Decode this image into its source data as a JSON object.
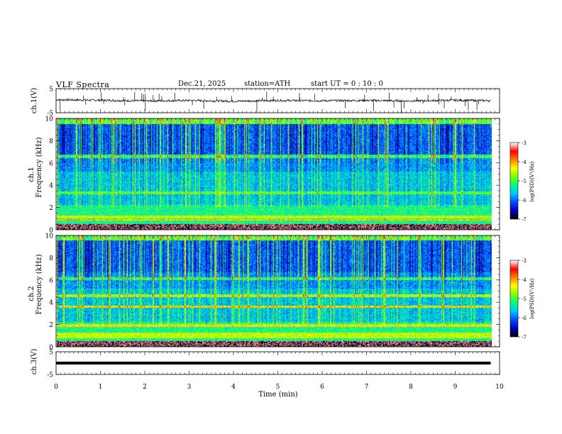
{
  "header": {
    "title": "VLF  Spectra",
    "date": "Dec.21, 2025",
    "station": "station=ATH",
    "start_ut": "start  UT  =   0 : 10 : 0"
  },
  "chart_data": [
    {
      "type": "line",
      "panel": "ch1-waveform",
      "ylabel": "ch.1(V)",
      "ylim": [
        -5,
        5
      ],
      "yticks": [
        "5",
        "-5"
      ],
      "x": [
        0,
        1,
        2,
        3,
        4,
        5,
        6,
        7,
        8,
        9,
        9.8
      ],
      "values": [
        0.4,
        0.2,
        -0.1,
        0.1,
        -0.2,
        0.1,
        0.0,
        0.1,
        -0.1,
        0.2,
        0.0
      ],
      "xlim": [
        0,
        10
      ]
    },
    {
      "type": "heatmap",
      "panel": "ch1-spectrogram",
      "ylabel": "ch.1\nFrequency (kHz)",
      "ylim": [
        0,
        10
      ],
      "yticks": [
        "0",
        "2",
        "4",
        "6",
        "8",
        "10"
      ],
      "xlim": [
        0,
        10
      ],
      "colorbar": {
        "label": "log(PSD)(V²/Hz)",
        "min": -7,
        "max": -3,
        "ticks": [
          "-3",
          "-4",
          "-5",
          "-6",
          "-7"
        ]
      }
    },
    {
      "type": "heatmap",
      "panel": "ch2-spectrogram",
      "ylabel": "ch.2\nFrequency (kHz)",
      "ylim": [
        0,
        10
      ],
      "yticks": [
        "0",
        "2",
        "4",
        "6",
        "8",
        "10"
      ],
      "xlim": [
        0,
        10
      ],
      "colorbar": {
        "label": "log(PSD)(V²/Hz)",
        "min": -7,
        "max": -3,
        "ticks": [
          "-3",
          "-4",
          "-5",
          "-6",
          "-7"
        ]
      }
    },
    {
      "type": "line",
      "panel": "ch3-waveform",
      "ylabel": "ch.3(V)",
      "ylim": [
        -5,
        5
      ],
      "yticks": [
        "5",
        "-5"
      ],
      "x": [
        0,
        9.8
      ],
      "values": [
        0,
        0
      ],
      "xlim": [
        0,
        10
      ],
      "xlabel": "Time  (min)",
      "xticks": [
        "0",
        "1",
        "2",
        "3",
        "4",
        "5",
        "6",
        "7",
        "8",
        "9",
        "10"
      ]
    }
  ],
  "colors": {
    "colormap": [
      "#000000",
      "#0000c8",
      "#0050ff",
      "#00c8ff",
      "#00ff80",
      "#80ff00",
      "#ffff00",
      "#ff8000",
      "#ff0000",
      "#ffffff"
    ],
    "axes": "#000000"
  }
}
